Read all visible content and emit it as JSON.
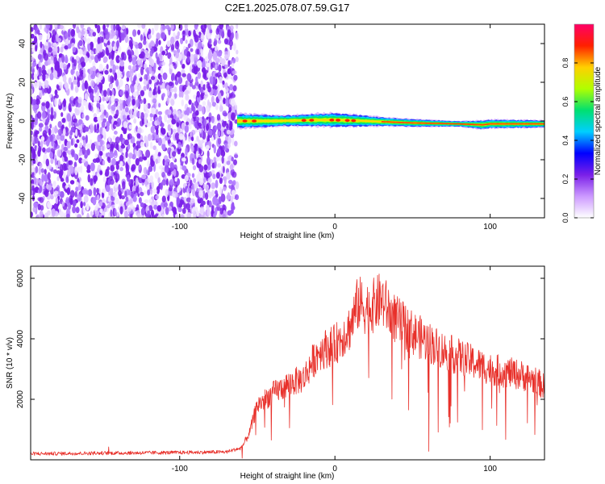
{
  "title": "C2E1.2025.078.07.59.G17",
  "chart_data": [
    {
      "type": "heatmap",
      "xlabel": "Height of straight line (km)",
      "ylabel": "Frequency (Hz)",
      "xlim": [
        -196,
        135
      ],
      "ylim": [
        -50,
        50
      ],
      "x_ticks": [
        -100,
        0,
        100
      ],
      "y_ticks": [
        -40,
        -20,
        0,
        20,
        40
      ],
      "colorbar": {
        "label": "Normalized spectral amplitude",
        "range": [
          0,
          1
        ],
        "ticks": [
          0.0,
          0.2,
          0.4,
          0.6,
          0.8
        ],
        "colormap": [
          "#ffffff",
          "#cc99ff",
          "#7a1fe8",
          "#0000ff",
          "#00cfff",
          "#00e070",
          "#b0ff00",
          "#ffd000",
          "#ff2000",
          "#ff0066"
        ]
      },
      "noise_region_x": [
        -196,
        -63
      ],
      "signal_band": {
        "x_range": [
          -63,
          135
        ],
        "center_frequency_hz": [
          [
            -63,
            0
          ],
          [
            -40,
            0
          ],
          [
            -10,
            0.5
          ],
          [
            0,
            0.5
          ],
          [
            20,
            0
          ],
          [
            50,
            -1
          ],
          [
            80,
            -1.5
          ],
          [
            95,
            -2
          ],
          [
            100,
            -1.5
          ],
          [
            135,
            -1.5
          ]
        ],
        "half_width_hz": [
          [
            -63,
            4
          ],
          [
            -30,
            3
          ],
          [
            0,
            4
          ],
          [
            30,
            2.5
          ],
          [
            80,
            1.5
          ],
          [
            95,
            2.5
          ],
          [
            135,
            2
          ]
        ]
      }
    },
    {
      "type": "line",
      "xlabel": "Height of straight line (km)",
      "ylabel": "SNR (10 * v/v)",
      "xlim": [
        -196,
        135
      ],
      "ylim": [
        0,
        6400
      ],
      "x_ticks": [
        -100,
        0,
        100
      ],
      "y_ticks": [
        2000,
        4000,
        6000
      ],
      "series": [
        {
          "color": "#e8302a",
          "x": [
            -196,
            -150,
            -100,
            -70,
            -60,
            -55,
            -50,
            -40,
            -30,
            -20,
            -15,
            -10,
            0,
            10,
            15,
            20,
            25,
            30,
            35,
            40,
            50,
            60,
            70,
            80,
            90,
            100,
            110,
            120,
            130,
            135
          ],
          "y": [
            200,
            220,
            240,
            260,
            400,
            900,
            1800,
            2200,
            2500,
            2700,
            3200,
            3600,
            3800,
            4400,
            5200,
            5000,
            5100,
            5300,
            4900,
            4600,
            4200,
            3900,
            3600,
            3400,
            3200,
            3000,
            2900,
            2800,
            2600,
            2400
          ]
        }
      ]
    }
  ]
}
